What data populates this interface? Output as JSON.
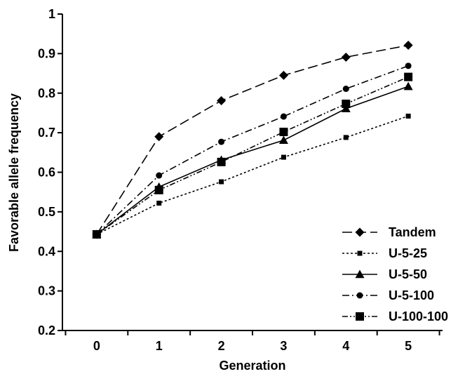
{
  "chart_data": {
    "type": "line",
    "title": "",
    "xlabel": "Generation",
    "ylabel": "Favorable allele frequency",
    "x": [
      0,
      1,
      2,
      3,
      4,
      5
    ],
    "ylim": [
      0.2,
      1.0
    ],
    "yticks": [
      "0.2",
      "0.3",
      "0.4",
      "0.5",
      "0.6",
      "0.7",
      "0.8",
      "0.9",
      "1"
    ],
    "xticks": [
      "0",
      "1",
      "2",
      "3",
      "4",
      "5"
    ],
    "grid": false,
    "legend_position": "bottom-right",
    "series": [
      {
        "name": "Tandem",
        "values": [
          0.443,
          0.69,
          0.781,
          0.845,
          0.891,
          0.921
        ],
        "marker": "diamond",
        "dash": "long-dash",
        "color": "#000000"
      },
      {
        "name": "U-5-25",
        "values": [
          0.443,
          0.522,
          0.576,
          0.638,
          0.688,
          0.742
        ],
        "marker": "small-square",
        "dash": "dotted",
        "color": "#000000"
      },
      {
        "name": "U-5-50",
        "values": [
          0.443,
          0.563,
          0.631,
          0.681,
          0.761,
          0.817
        ],
        "marker": "triangle",
        "dash": "solid",
        "color": "#000000"
      },
      {
        "name": "U-5-100",
        "values": [
          0.443,
          0.592,
          0.677,
          0.741,
          0.811,
          0.869
        ],
        "marker": "circle",
        "dash": "dash-dot",
        "color": "#000000"
      },
      {
        "name": "U-100-100",
        "values": [
          0.443,
          0.555,
          0.626,
          0.702,
          0.773,
          0.841
        ],
        "marker": "square",
        "dash": "dash-dot-dot",
        "color": "#000000"
      }
    ]
  }
}
